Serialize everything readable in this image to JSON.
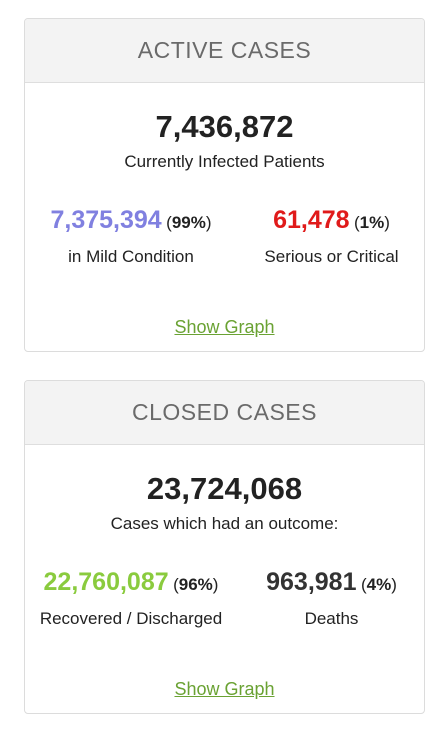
{
  "active": {
    "title": "ACTIVE CASES",
    "total": "7,436,872",
    "total_label": "Currently Infected Patients",
    "mild": {
      "value": "7,375,394",
      "pct": "99%",
      "label": "in Mild Condition",
      "color": "#8080e0"
    },
    "serious": {
      "value": "61,478",
      "pct": "1%",
      "label": "Serious or Critical",
      "color": "#e01a1a"
    },
    "show_graph": "Show Graph"
  },
  "closed": {
    "title": "CLOSED CASES",
    "total": "23,724,068",
    "total_label": "Cases which had an outcome:",
    "recovered": {
      "value": "22,760,087",
      "pct": "96%",
      "label": "Recovered / Discharged",
      "color": "#8acb3e"
    },
    "deaths": {
      "value": "963,981",
      "pct": "4%",
      "label": "Deaths",
      "color": "#333333"
    },
    "show_graph": "Show Graph"
  },
  "colors": {
    "link": "#6aa233",
    "header_bg": "#f3f3f3",
    "border": "#dcdcdc"
  }
}
